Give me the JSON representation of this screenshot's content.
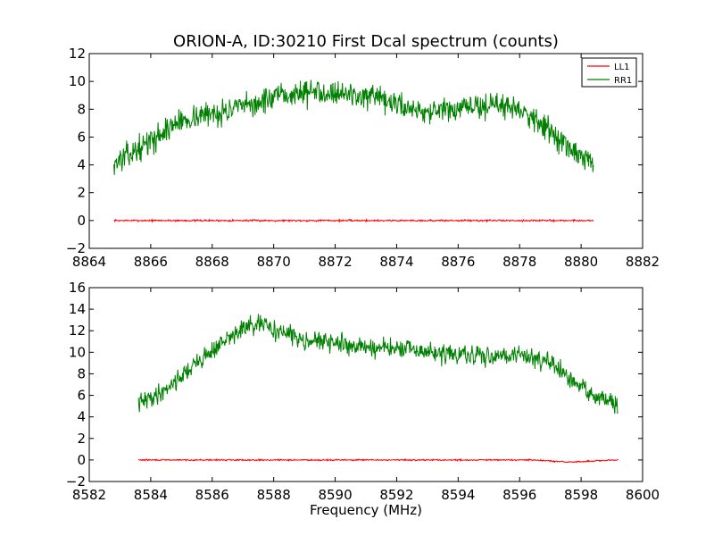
{
  "figure": {
    "title": "ORION-A, ID:30210 First Dcal spectrum (counts)",
    "xlabel": "Frequency (MHz)"
  },
  "legend": {
    "placement": "top-right",
    "entries": [
      {
        "name": "LL1",
        "color": "#ff0000"
      },
      {
        "name": "RR1",
        "color": "#008000"
      }
    ]
  },
  "chart_data": [
    {
      "type": "line",
      "title": "ORION-A, ID:30210 First Dcal spectrum (counts)",
      "xlabel": "",
      "ylabel": "",
      "xlim": [
        8864,
        8882
      ],
      "ylim": [
        -2,
        12
      ],
      "xticks": [
        8864,
        8866,
        8868,
        8870,
        8872,
        8874,
        8876,
        8878,
        8880,
        8882
      ],
      "yticks": [
        -2,
        0,
        2,
        4,
        6,
        8,
        10,
        12
      ],
      "grid": false,
      "legend": "top-right",
      "x_range_of_series": [
        8864.8,
        8880.4
      ],
      "series": [
        {
          "name": "LL1",
          "color": "#ff0000",
          "x": [
            8864.8,
            8866.4,
            8868.0,
            8869.6,
            8871.2,
            8872.8,
            8874.4,
            8876.0,
            8877.6,
            8879.2,
            8880.4
          ],
          "values": [
            0.0,
            0.0,
            0.0,
            0.0,
            0.0,
            0.0,
            0.0,
            0.0,
            0.0,
            0.0,
            0.0
          ]
        },
        {
          "name": "RR1",
          "color": "#008000",
          "x": [
            8864.8,
            8865.5,
            8866.2,
            8866.8,
            8867.5,
            8868.3,
            8869.1,
            8870.0,
            8870.9,
            8871.8,
            8872.7,
            8873.5,
            8874.3,
            8875.0,
            8875.8,
            8876.6,
            8877.3,
            8878.0,
            8878.7,
            8879.3,
            8879.9,
            8880.4
          ],
          "values": [
            4.1,
            5.0,
            6.0,
            7.0,
            7.5,
            7.8,
            8.2,
            8.8,
            9.2,
            9.3,
            9.0,
            8.6,
            8.2,
            7.8,
            7.9,
            8.2,
            8.3,
            8.1,
            7.0,
            5.8,
            4.6,
            4.2
          ]
        }
      ]
    },
    {
      "type": "line",
      "title": "",
      "xlabel": "Frequency (MHz)",
      "ylabel": "",
      "xlim": [
        8582,
        8600
      ],
      "ylim": [
        -2,
        16
      ],
      "xticks": [
        8582,
        8584,
        8586,
        8588,
        8590,
        8592,
        8594,
        8596,
        8598,
        8600
      ],
      "yticks": [
        -2,
        0,
        2,
        4,
        6,
        8,
        10,
        12,
        14,
        16
      ],
      "grid": false,
      "x_range_of_series": [
        8583.6,
        8599.2
      ],
      "series": [
        {
          "name": "LL1",
          "color": "#ff0000",
          "x": [
            8583.6,
            8585.2,
            8586.8,
            8588.4,
            8590.0,
            8591.6,
            8593.2,
            8594.8,
            8596.4,
            8597.6,
            8599.2
          ],
          "values": [
            0.0,
            0.0,
            0.0,
            0.0,
            0.0,
            0.0,
            0.0,
            0.0,
            0.0,
            -0.2,
            0.0
          ]
        },
        {
          "name": "RR1",
          "color": "#008000",
          "x": [
            8583.6,
            8584.3,
            8585.0,
            8585.7,
            8586.3,
            8587.0,
            8587.6,
            8588.3,
            8589.0,
            8589.8,
            8590.6,
            8591.4,
            8592.2,
            8593.0,
            8593.8,
            8594.6,
            8595.4,
            8596.2,
            8596.9,
            8597.6,
            8598.3,
            8599.2
          ],
          "values": [
            5.2,
            6.2,
            7.8,
            9.5,
            10.8,
            12.2,
            12.6,
            11.8,
            11.2,
            10.9,
            10.6,
            10.4,
            10.3,
            10.0,
            9.8,
            9.6,
            9.8,
            9.7,
            9.2,
            7.5,
            6.2,
            5.0
          ]
        }
      ]
    }
  ]
}
